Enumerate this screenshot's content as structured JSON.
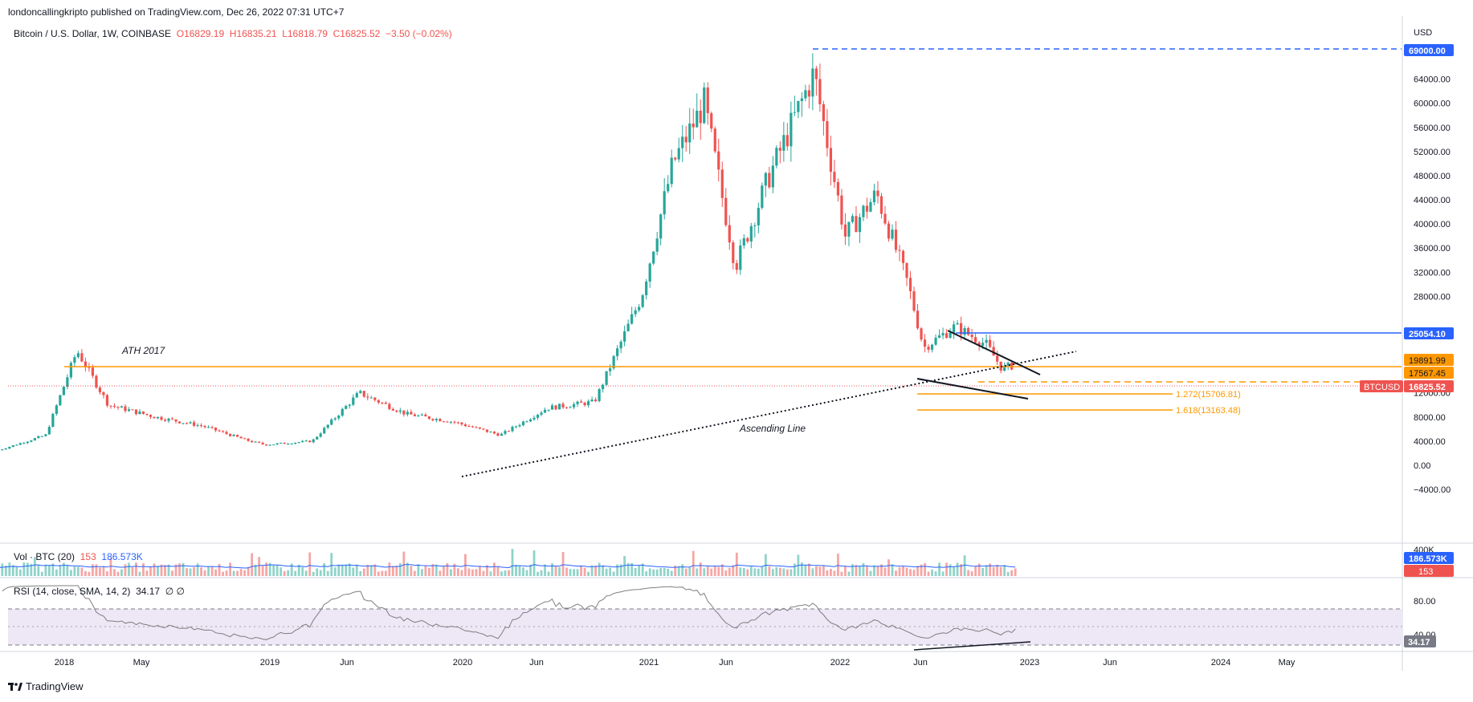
{
  "header": {
    "publisher": "londoncallingkripto published on TradingView.com, Dec 26, 2022 07:31 UTC+7",
    "symbol": "Bitcoin / U.S. Dollar, 1W, COINBASE",
    "open": "O16829.19",
    "high": "H16835.21",
    "low": "L16818.79",
    "close": "C16825.52",
    "change": "−3.50 (−0.02%)"
  },
  "price_axis": {
    "currency": "USD",
    "ticks": [
      "64000.00",
      "60000.00",
      "56000.00",
      "52000.00",
      "48000.00",
      "44000.00",
      "40000.00",
      "36000.00",
      "32000.00",
      "28000.00",
      "12000.00",
      "8000.00",
      "4000.00",
      "0.00",
      "−4000.00"
    ],
    "tags": {
      "ath": "69000.00",
      "resistance": "25054.10",
      "ath2017": "19891.99",
      "level": "17567.45",
      "symbol": "BTCUSD",
      "last": "16825.52"
    }
  },
  "annotations": {
    "ath_label": "ATH 2017",
    "ascending_line": "Ascending Line",
    "fib1": "1.272(15706.81)",
    "fib2": "1.618(13163.48)"
  },
  "volume": {
    "label": "Vol · BTC (20)",
    "value": "153",
    "ma": "186.573K",
    "axis_top": "400K"
  },
  "rsi": {
    "label": "RSI (14, close, SMA, 14, 2)",
    "value": "34.17",
    "extra": "∅ ∅",
    "ticks": [
      "80.00",
      "40.00"
    ],
    "current": "34.17"
  },
  "time_axis": [
    "2018",
    "May",
    "2019",
    "Jun",
    "2020",
    "Jun",
    "2021",
    "Jun",
    "2022",
    "Jun",
    "2023",
    "Jun",
    "2024",
    "May"
  ],
  "footer": {
    "brand": "TradingView"
  },
  "colors": {
    "up": "#26a69a",
    "down": "#ef5350",
    "orange": "#ff9800",
    "blue": "#2962ff",
    "rsi_band": "#ede7f6"
  },
  "chart_data": {
    "type": "candlestick",
    "interval": "1W",
    "symbol": "BTCUSD",
    "y_scale": "linear",
    "ylim": [
      -6000,
      72000
    ],
    "series_close": [
      {
        "date": "2017-07",
        "close": 2500
      },
      {
        "date": "2017-10",
        "close": 5000
      },
      {
        "date": "2017-12",
        "close": 19000
      },
      {
        "date": "2018-02",
        "close": 10000
      },
      {
        "date": "2018-05",
        "close": 8000
      },
      {
        "date": "2018-08",
        "close": 6500
      },
      {
        "date": "2018-11",
        "close": 4000
      },
      {
        "date": "2018-12",
        "close": 3400
      },
      {
        "date": "2019-03",
        "close": 4000
      },
      {
        "date": "2019-06",
        "close": 12000
      },
      {
        "date": "2019-09",
        "close": 8500
      },
      {
        "date": "2019-12",
        "close": 7200
      },
      {
        "date": "2020-03",
        "close": 5000
      },
      {
        "date": "2020-06",
        "close": 9500
      },
      {
        "date": "2020-09",
        "close": 10500
      },
      {
        "date": "2020-12",
        "close": 28000
      },
      {
        "date": "2021-02",
        "close": 50000
      },
      {
        "date": "2021-04",
        "close": 60000
      },
      {
        "date": "2021-06",
        "close": 33000
      },
      {
        "date": "2021-08",
        "close": 47000
      },
      {
        "date": "2021-11",
        "close": 65000
      },
      {
        "date": "2022-01",
        "close": 38000
      },
      {
        "date": "2022-03",
        "close": 45000
      },
      {
        "date": "2022-05",
        "close": 30000
      },
      {
        "date": "2022-06",
        "close": 19500
      },
      {
        "date": "2022-08",
        "close": 23000
      },
      {
        "date": "2022-10",
        "close": 20000
      },
      {
        "date": "2022-11",
        "close": 16000
      },
      {
        "date": "2022-12",
        "close": 16825.52
      }
    ],
    "levels": [
      {
        "name": "ATH",
        "value": 69000
      },
      {
        "name": "Resistance",
        "value": 25054.1
      },
      {
        "name": "ATH 2017",
        "value": 19891.99
      },
      {
        "name": "Level",
        "value": 17567.45
      },
      {
        "name": "Last",
        "value": 16825.52
      },
      {
        "name": "Fib 1.272",
        "value": 15706.81
      },
      {
        "name": "Fib 1.618",
        "value": 13163.48
      }
    ]
  }
}
